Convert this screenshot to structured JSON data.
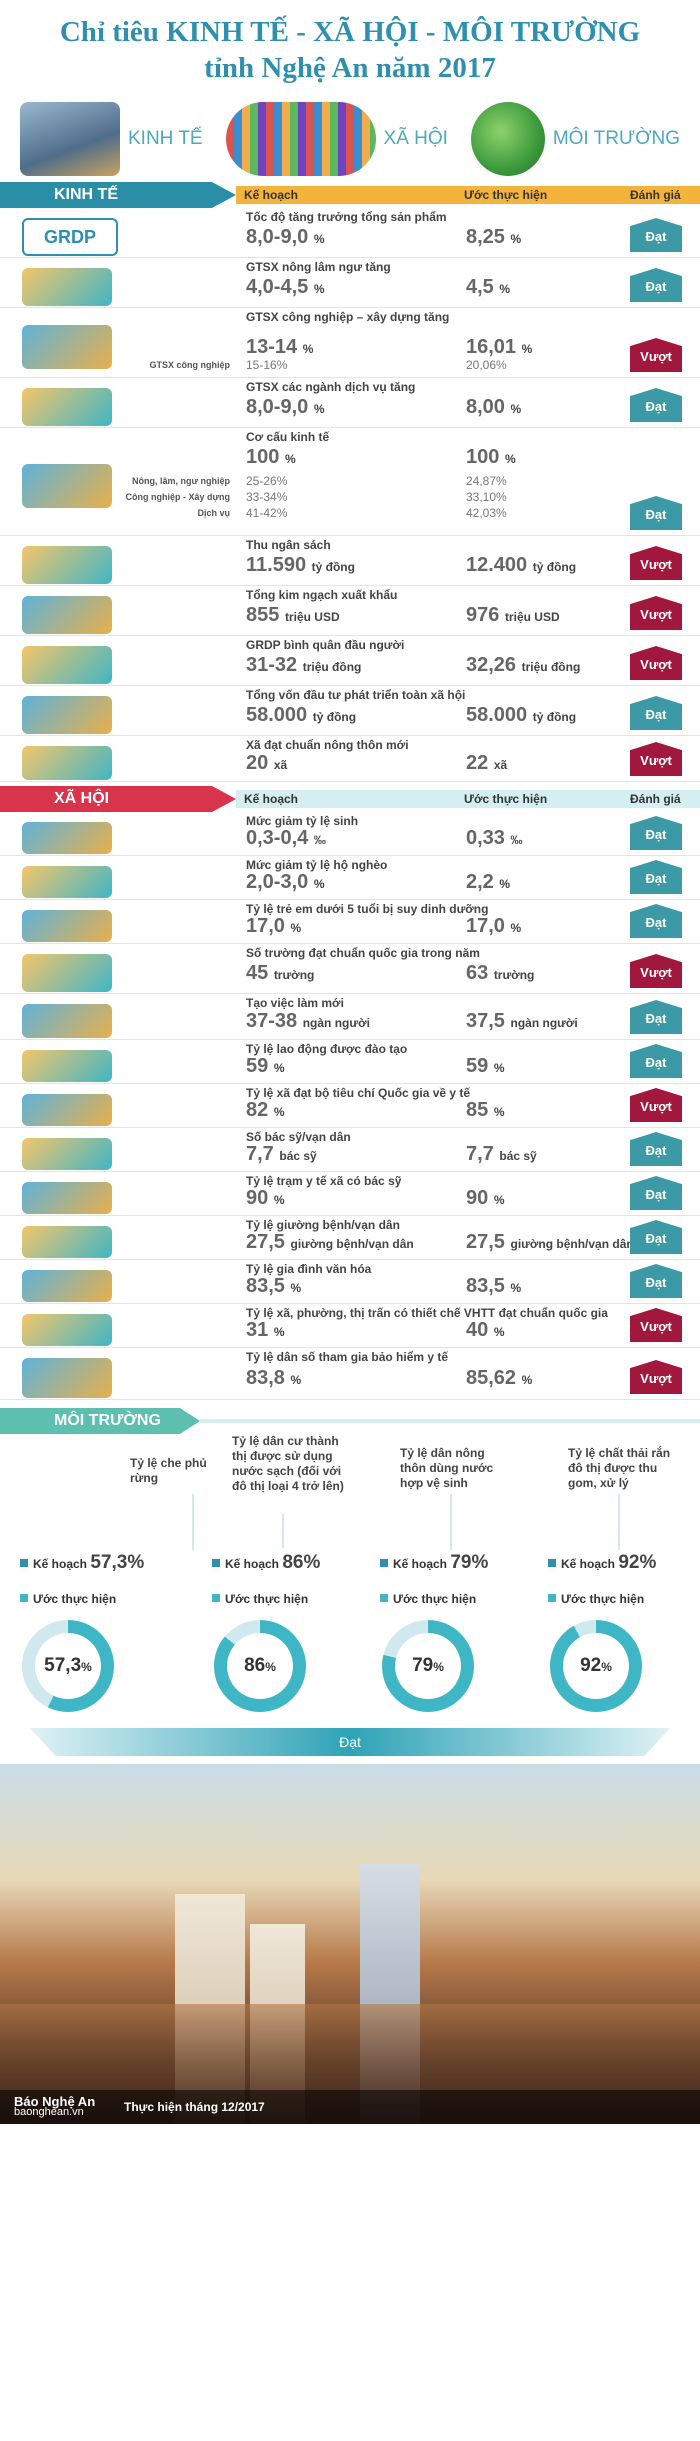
{
  "title_line1": "Chỉ tiêu KINH TẾ - XÃ HỘI - MÔI TRƯỜNG",
  "title_line2": "tỉnh Nghệ An năm 2017",
  "categories": [
    "KINH TẾ",
    "XÃ HỘI",
    "MÔI TRƯỜNG"
  ],
  "columns": {
    "plan": "Kế hoạch",
    "estimate": "Ước thực hiện",
    "assessment": "Đánh giá"
  },
  "badges": {
    "dat": "Đạt",
    "vuot": "Vượt"
  },
  "colors": {
    "teal": "#2e8fae",
    "dat": "#3b9aa6",
    "vuot": "#a2173d",
    "econ_ribbon": "#2a8fa6",
    "social_ribbon": "#d8344b",
    "env_ribbon": "#5cbfb0",
    "gold": "#f4b43c",
    "aqua": "#3fb6c5"
  },
  "economy": {
    "label": "KINH TẾ",
    "rows": [
      {
        "title": "Tốc độ tăng trưởng tổng sản phẩm",
        "icon": "grdp-icon",
        "icon_text": "GRDP",
        "plan": "8,0-9,0",
        "plan_unit": "%",
        "est": "8,25",
        "est_unit": "%",
        "badge": "Đạt"
      },
      {
        "title": "GTSX nông lâm ngư tăng",
        "icon": "agriculture-icon",
        "plan": "4,0-4,5",
        "plan_unit": "%",
        "est": "4,5",
        "est_unit": "%",
        "badge": "Đạt"
      },
      {
        "title": "GTSX công nghiệp – xây dựng tăng",
        "icon": "factory-icon",
        "plan": "13-14",
        "plan_unit": "%",
        "est": "16,01",
        "est_unit": "%",
        "sub_label": "GTSX công nghiệp",
        "sub_plan": "15-16",
        "sub_plan_unit": "%",
        "sub_est": "20,06",
        "sub_est_unit": "%",
        "badge": "Vượt"
      },
      {
        "title": "GTSX các ngành dịch vụ tăng",
        "icon": "tools-icon",
        "plan": "8,0-9,0",
        "plan_unit": "%",
        "est": "8,00",
        "est_unit": "%",
        "badge": "Đạt"
      },
      {
        "title": "Cơ cấu kinh tế",
        "icon": "gears-icon",
        "plan": "100",
        "plan_unit": "%",
        "est": "100",
        "est_unit": "%",
        "lines": [
          {
            "label": "Nông, lâm, ngư nghiệp",
            "plan": "25-26",
            "plan_unit": "%",
            "est": "24,87",
            "est_unit": "%"
          },
          {
            "label": "Công nghiệp - Xây dựng",
            "plan": "33-34",
            "plan_unit": "%",
            "est": "33,10",
            "est_unit": "%"
          },
          {
            "label": "Dịch vụ",
            "plan": "41-42",
            "plan_unit": "%",
            "est": "42,03",
            "est_unit": "%"
          }
        ],
        "badge": "Đạt"
      },
      {
        "title": "Thu ngân sách",
        "icon": "budget-icon",
        "plan": "11.590",
        "plan_unit": "tỷ đồng",
        "est": "12.400",
        "est_unit": "tỷ đồng",
        "badge": "Vượt"
      },
      {
        "title": "Tổng kim ngạch xuất khẩu",
        "icon": "export-icon",
        "plan": "855",
        "plan_unit": "triệu USD",
        "est": "976",
        "est_unit": "triệu USD",
        "badge": "Vượt"
      },
      {
        "title": "GRDP bình quân đầu người",
        "icon": "person-computer-icon",
        "plan": "31-32",
        "plan_unit": "triệu đồng",
        "est": "32,26",
        "est_unit": "triệu đồng",
        "badge": "Vượt"
      },
      {
        "title": "Tổng vốn đầu tư phát triển toàn xã hội",
        "icon": "coins-icon",
        "plan": "58.000",
        "plan_unit": "tỷ đồng",
        "est": "58.000",
        "est_unit": "tỷ đồng",
        "badge": "Đạt"
      },
      {
        "title": "Xã đạt chuẩn nông thôn mới",
        "icon": "village-icon",
        "plan": "20",
        "plan_unit": "xã",
        "est": "22",
        "est_unit": "xã",
        "badge": "Vượt"
      }
    ]
  },
  "society": {
    "label": "XÃ HỘI",
    "rows": [
      {
        "title": "Mức giảm tỷ lệ sinh",
        "icon": "family-icon",
        "plan": "0,3-0,4",
        "plan_unit": "‰",
        "est": "0,33",
        "est_unit": "‰",
        "badge": "Đạt"
      },
      {
        "title": "Mức giảm tỷ lệ hộ nghèo",
        "icon": "people-row-icon",
        "plan": "2,0-3,0",
        "plan_unit": "%",
        "est": "2,2",
        "est_unit": "%",
        "badge": "Đạt"
      },
      {
        "title": "Tỷ lệ trẻ em dưới 5 tuổi bị suy dinh dưỡng",
        "icon": "child-icon",
        "plan": "17,0",
        "plan_unit": "%",
        "est": "17,0",
        "est_unit": "%",
        "badge": "Đạt"
      },
      {
        "title": "Số trường đạt chuẩn quốc gia trong năm",
        "icon": "school-icon",
        "plan": "45",
        "plan_unit": "trường",
        "est": "63",
        "est_unit": "trường",
        "badge": "Vượt"
      },
      {
        "title": "Tạo việc làm mới",
        "icon": "workers-icon",
        "plan": "37-38",
        "plan_unit": "ngàn người",
        "est": "37,5",
        "est_unit": "ngàn người",
        "badge": "Đạt"
      },
      {
        "title": "Tỷ lệ lao động được đào tạo",
        "icon": "engineer-icon",
        "plan": "59",
        "plan_unit": "%",
        "est": "59",
        "est_unit": "%",
        "badge": "Đạt"
      },
      {
        "title": "Tỷ lệ xã đạt bộ tiêu chí Quốc gia về y tế",
        "icon": "health-network-icon",
        "plan": "82",
        "plan_unit": "%",
        "est": "85",
        "est_unit": "%",
        "badge": "Vượt"
      },
      {
        "title": "Số bác sỹ/vạn dân",
        "icon": "doctor-icon",
        "plan": "7,7",
        "plan_unit": "bác sỹ",
        "est": "7,7",
        "est_unit": "bác sỹ",
        "badge": "Đạt"
      },
      {
        "title": "Tỷ lệ trạm y tế xã có bác sỹ",
        "icon": "clinic-icon",
        "plan": "90",
        "plan_unit": "%",
        "est": "90",
        "est_unit": "%",
        "badge": "Đạt"
      },
      {
        "title": "Tỷ lệ giường bệnh/vạn dân",
        "icon": "hospital-bed-icon",
        "plan": "27,5",
        "plan_unit": "giường bệnh/vạn dân",
        "est": "27,5",
        "est_unit": "giường bệnh/vạn dân",
        "badge": "Đạt"
      },
      {
        "title": "Tỷ lệ gia đình văn hóa",
        "icon": "families-icon",
        "plan": "83,5",
        "plan_unit": "%",
        "est": "83,5",
        "est_unit": "%",
        "badge": "Đạt"
      },
      {
        "title": "Tỷ lệ xã, phường, thị trấn có thiết chế VHTT đạt chuẩn quốc gia",
        "icon": "culture-house-icon",
        "plan": "31",
        "plan_unit": "%",
        "est": "40",
        "est_unit": "%",
        "badge": "Vượt"
      },
      {
        "title": "Tỷ lệ dân số tham gia bảo hiểm y tế",
        "icon": "insurance-card-icon",
        "plan": "83,8",
        "plan_unit": "%",
        "est": "85,62",
        "est_unit": "%",
        "badge": "Vượt"
      }
    ]
  },
  "environment": {
    "label": "MÔI TRƯỜNG",
    "plan_label": "Kế hoạch",
    "estimate_label": "Ước thực hiện",
    "items": [
      {
        "desc": "Tỷ lệ che phủ rừng",
        "plan": "57,3",
        "unit": "%",
        "est": "57,3",
        "fraction": 0.573
      },
      {
        "desc": "Tỷ lệ dân cư thành thị được sử dụng nước sạch (đối với đô thị loại 4 trở lên)",
        "plan": "86",
        "unit": "%",
        "est": "86",
        "fraction": 0.86
      },
      {
        "desc": "Tỷ lệ dân nông thôn dùng nước hợp vệ sinh",
        "plan": "79",
        "unit": "%",
        "est": "79",
        "fraction": 0.79
      },
      {
        "desc": "Tỷ lệ chất thải rắn đô thị được thu gom, xử lý",
        "plan": "92",
        "unit": "%",
        "est": "92",
        "fraction": 0.92
      }
    ],
    "result": "Đạt"
  },
  "footer": {
    "logo": "Báo Nghệ An",
    "logo_sub": "baonghean.vn",
    "date": "Thực hiện tháng 12/2017"
  }
}
